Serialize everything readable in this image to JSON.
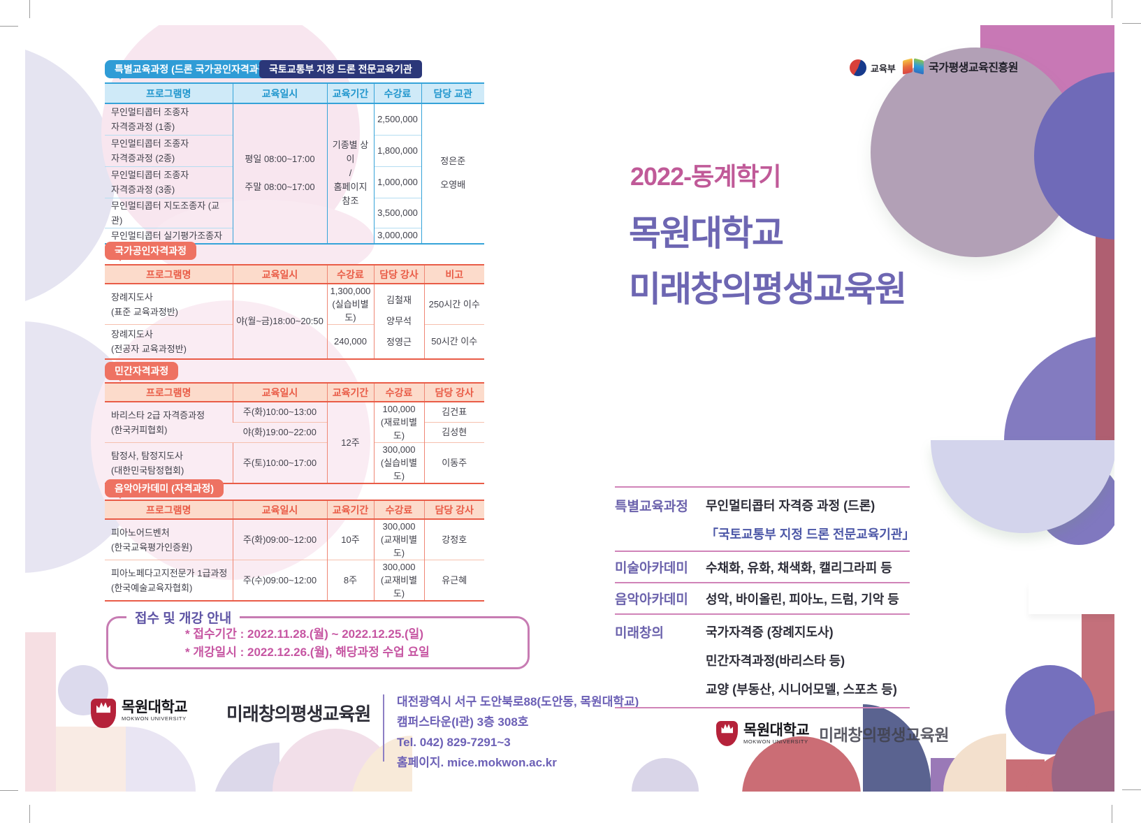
{
  "colors": {
    "accent_blue": "#2f9cd6",
    "accent_navy": "#2b3779",
    "accent_salmon": "#ee7262",
    "accent_pink": "#c05a98",
    "accent_purple": "#6d66b2",
    "divider_pink": "#d083b8",
    "shield_red": "#b5223a"
  },
  "left": {
    "badge_special": "특별교육과정 (드론 국가공인자격과정)",
    "badge_gov": "국토교통부 지정 드론 전문교육기관",
    "badge_national": "국가공인자격과정",
    "badge_private": "민간자격과정",
    "badge_music": "음악아카데미 (자격과정)",
    "drone": {
      "headers": [
        "프로그램명",
        "교육일시",
        "교육기간",
        "수강료",
        "담당 교관"
      ],
      "schedule_lines": [
        "평일 08:00~17:00",
        "주말 08:00~17:00"
      ],
      "duration_lines": [
        "기종별 상이",
        "/",
        "홈페이지 참조"
      ],
      "instructor_lines": [
        "정은준",
        "오영배"
      ],
      "rows": [
        {
          "name_lines": [
            "무인멀티콥터 조종자",
            "자격증과정 (1종)"
          ],
          "fee": "2,500,000"
        },
        {
          "name_lines": [
            "무인멀티콥터 조종자",
            "자격증과정 (2종)"
          ],
          "fee": "1,800,000"
        },
        {
          "name_lines": [
            "무인멀티콥터 조종자",
            "자격증과정 (3종)"
          ],
          "fee": "1,000,000"
        },
        {
          "name_lines": [
            "무인멀티콥터 지도조종자 (교관)"
          ],
          "fee": "3,500,000"
        },
        {
          "name_lines": [
            "무인멀티콥터 실기평가조종자"
          ],
          "fee": "3,000,000"
        }
      ]
    },
    "national": {
      "headers": [
        "프로그램명",
        "교육일시",
        "수강료",
        "담당 강사",
        "비고"
      ],
      "schedule": "야(월~금)18:00~20:50",
      "instructor_lines": [
        "김철재",
        "양무석",
        "정영근"
      ],
      "rows": [
        {
          "name_lines": [
            "장례지도사",
            "(표준 교육과정반)"
          ],
          "fee_lines": [
            "1,300,000",
            "(실습비별도)"
          ],
          "note": "250시간 이수"
        },
        {
          "name_lines": [
            "장례지도사",
            "(전공자 교육과정반)"
          ],
          "fee_lines": [
            "240,000"
          ],
          "note": "50시간 이수"
        }
      ]
    },
    "private": {
      "headers": [
        "프로그램명",
        "교육일시",
        "교육기간",
        "수강료",
        "담당 강사"
      ],
      "duration": "12주",
      "barista": {
        "name_lines": [
          "바리스타 2급 자격증과정",
          "(한국커피협회)"
        ],
        "schedules": [
          "주(화)10:00~13:00",
          "야(화)19:00~22:00"
        ],
        "fee_lines": [
          "100,000",
          "(재료비별도)"
        ],
        "instructors": [
          "김건표",
          "김성현"
        ]
      },
      "detective": {
        "name_lines": [
          "탐정사, 탐정지도사",
          "(대한민국탐정협회)"
        ],
        "schedule": "주(토)10:00~17:00",
        "fee_lines": [
          "300,000",
          "(실습비별도)"
        ],
        "instructor": "이동주"
      }
    },
    "music": {
      "headers": [
        "프로그램명",
        "교육일시",
        "교육기간",
        "수강료",
        "담당 강사"
      ],
      "rows": [
        {
          "name_lines": [
            "피아노어드벤처",
            "(한국교육평가인증원)"
          ],
          "schedule": "주(화)09:00~12:00",
          "duration": "10주",
          "fee_lines": [
            "300,000",
            "(교재비별도)"
          ],
          "instructor": "강정호"
        },
        {
          "name_lines": [
            "피아노페다고지전문가 1급과정",
            "(한국예술교육자협회)"
          ],
          "schedule": "주(수)09:00~12:00",
          "duration": "8주",
          "fee_lines": [
            "300,000",
            "(교재비별도)"
          ],
          "instructor": "유근혜"
        }
      ]
    },
    "notice": {
      "title": "접수 및 개강 안내",
      "lines": [
        "* 접수기간 : 2022.11.28.(월) ~ 2022.12.25.(일)",
        "* 개강일시 : 2022.12.26.(월), 해당과정 수업 요일"
      ]
    },
    "footer": {
      "univ": "목원대학교",
      "univ_en": "MOKWON UNIVERSITY",
      "org": "미래창의평생교육원",
      "address_lines": [
        "대전광역시 서구 도안북로88(도안동, 목원대학교)",
        "캠퍼스타운(I관) 3층 308호",
        "Tel. 042) 829-7291~3",
        "홈페이지. mice.mokwon.ac.kr"
      ]
    }
  },
  "right": {
    "gov_moe": "교육부",
    "gov_nile": "국가평생교육진흥원",
    "semester": "2022-동계학기",
    "title_lines": [
      "목원대학교",
      "미래창의평생교육원"
    ],
    "programs": [
      {
        "label": "특별교육과정",
        "lines": [
          "무인멀티콥터 자격증 과정 (드론)",
          "「국토교통부 지정 드론 전문교육기관」"
        ]
      },
      {
        "label": "미술아카데미",
        "lines": [
          "수채화, 유화, 채색화, 캘리그라피 등"
        ]
      },
      {
        "label": "음악아카데미",
        "lines": [
          "성악, 바이올린, 피아노, 드럼, 기악 등"
        ]
      },
      {
        "label": "미래창의",
        "lines": [
          "국가자격증 (장례지도사)",
          "민간자격과정(바리스타 등)",
          "교양 (부동산, 시니어모델, 스포츠 등)"
        ]
      }
    ],
    "logo": {
      "univ": "목원대학교",
      "univ_en": "MOKWON UNIVERSITY",
      "org": "미래창의평생교육원"
    }
  }
}
